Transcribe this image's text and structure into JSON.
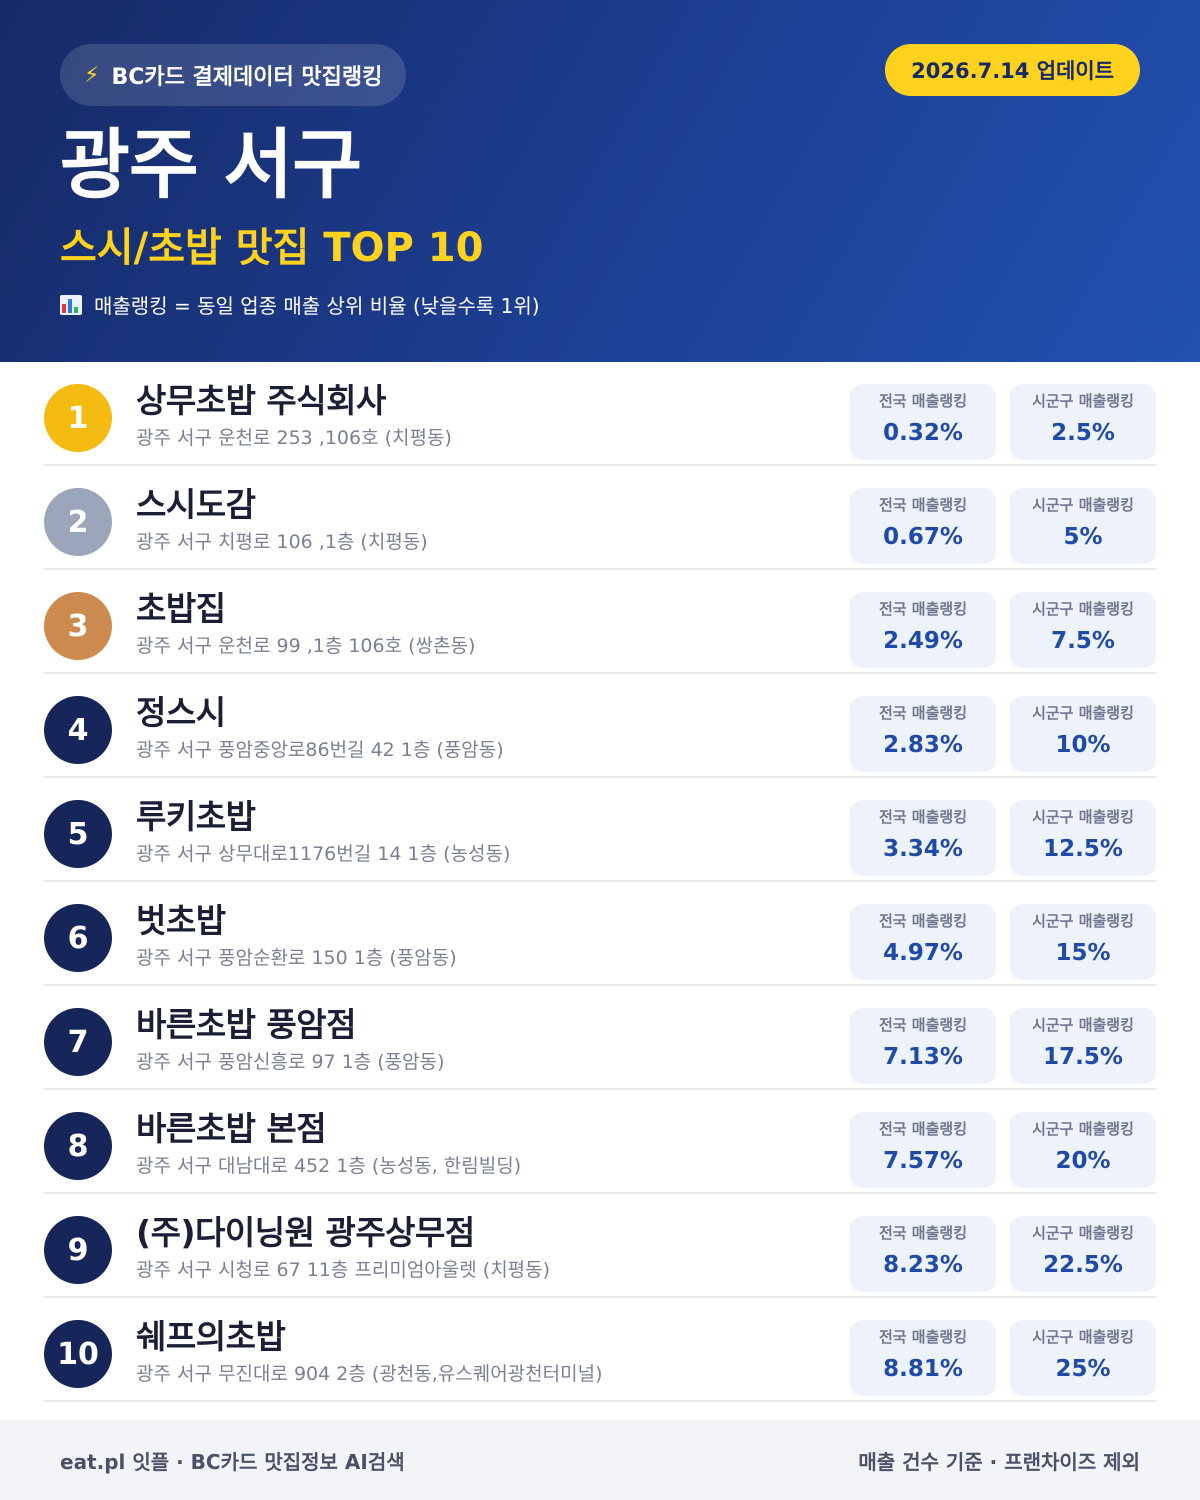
{
  "header": {
    "brand_icon": "bolt-icon",
    "brand_label": "BC카드 결제데이터 맛집랭킹",
    "update_label": "2026.7.14 업데이트",
    "region": "광주 서구",
    "subtitle": "스시/초밥 맛집 TOP 10",
    "note_icon": "bar-chart-icon",
    "note": "매출랭킹 = 동일 업종 매출 상위 비율 (낮을수록 1위)",
    "colors": {
      "accent": "#ffd21e",
      "navy": "#162a66",
      "gold": "#f4bb12",
      "silver": "#9ba6bb",
      "bronze": "#cc8a4e"
    }
  },
  "stat_labels": {
    "national": "전국 매출랭킹",
    "local": "시군구 매출랭킹"
  },
  "restaurants": [
    {
      "rank": "1",
      "name": "상무초밥 주식회사",
      "address": "광주 서구 운천로 253 ,106호 (치평동)",
      "national": "0.32%",
      "local": "2.5%"
    },
    {
      "rank": "2",
      "name": "스시도감",
      "address": "광주 서구 치평로 106 ,1층 (치평동)",
      "national": "0.67%",
      "local": "5%"
    },
    {
      "rank": "3",
      "name": "초밥집",
      "address": "광주 서구 운천로 99 ,1층 106호 (쌍촌동)",
      "national": "2.49%",
      "local": "7.5%"
    },
    {
      "rank": "4",
      "name": "정스시",
      "address": "광주 서구 풍암중앙로86번길 42 1층 (풍암동)",
      "national": "2.83%",
      "local": "10%"
    },
    {
      "rank": "5",
      "name": "루키초밥",
      "address": "광주 서구 상무대로1176번길 14 1층 (농성동)",
      "national": "3.34%",
      "local": "12.5%"
    },
    {
      "rank": "6",
      "name": "벗초밥",
      "address": "광주 서구 풍암순환로 150 1층 (풍암동)",
      "national": "4.97%",
      "local": "15%"
    },
    {
      "rank": "7",
      "name": "바른초밥 풍암점",
      "address": "광주 서구 풍암신흥로 97 1층 (풍암동)",
      "national": "7.13%",
      "local": "17.5%"
    },
    {
      "rank": "8",
      "name": "바른초밥 본점",
      "address": "광주 서구 대남대로 452 1층 (농성동, 한림빌딩)",
      "national": "7.57%",
      "local": "20%"
    },
    {
      "rank": "9",
      "name": "(주)다이닝원 광주상무점",
      "address": "광주 서구 시청로 67 11층 프리미엄아울렛 (치평동)",
      "national": "8.23%",
      "local": "22.5%"
    },
    {
      "rank": "10",
      "name": "쉐프의초밥",
      "address": "광주 서구 무진대로 904 2층 (광천동,유스퀘어광천터미널)",
      "national": "8.81%",
      "local": "25%"
    }
  ],
  "footer": {
    "left": "eat.pl 잇플 · BC카드 맛집정보 AI검색",
    "right": "매출 건수 기준 · 프랜차이즈 제외"
  }
}
